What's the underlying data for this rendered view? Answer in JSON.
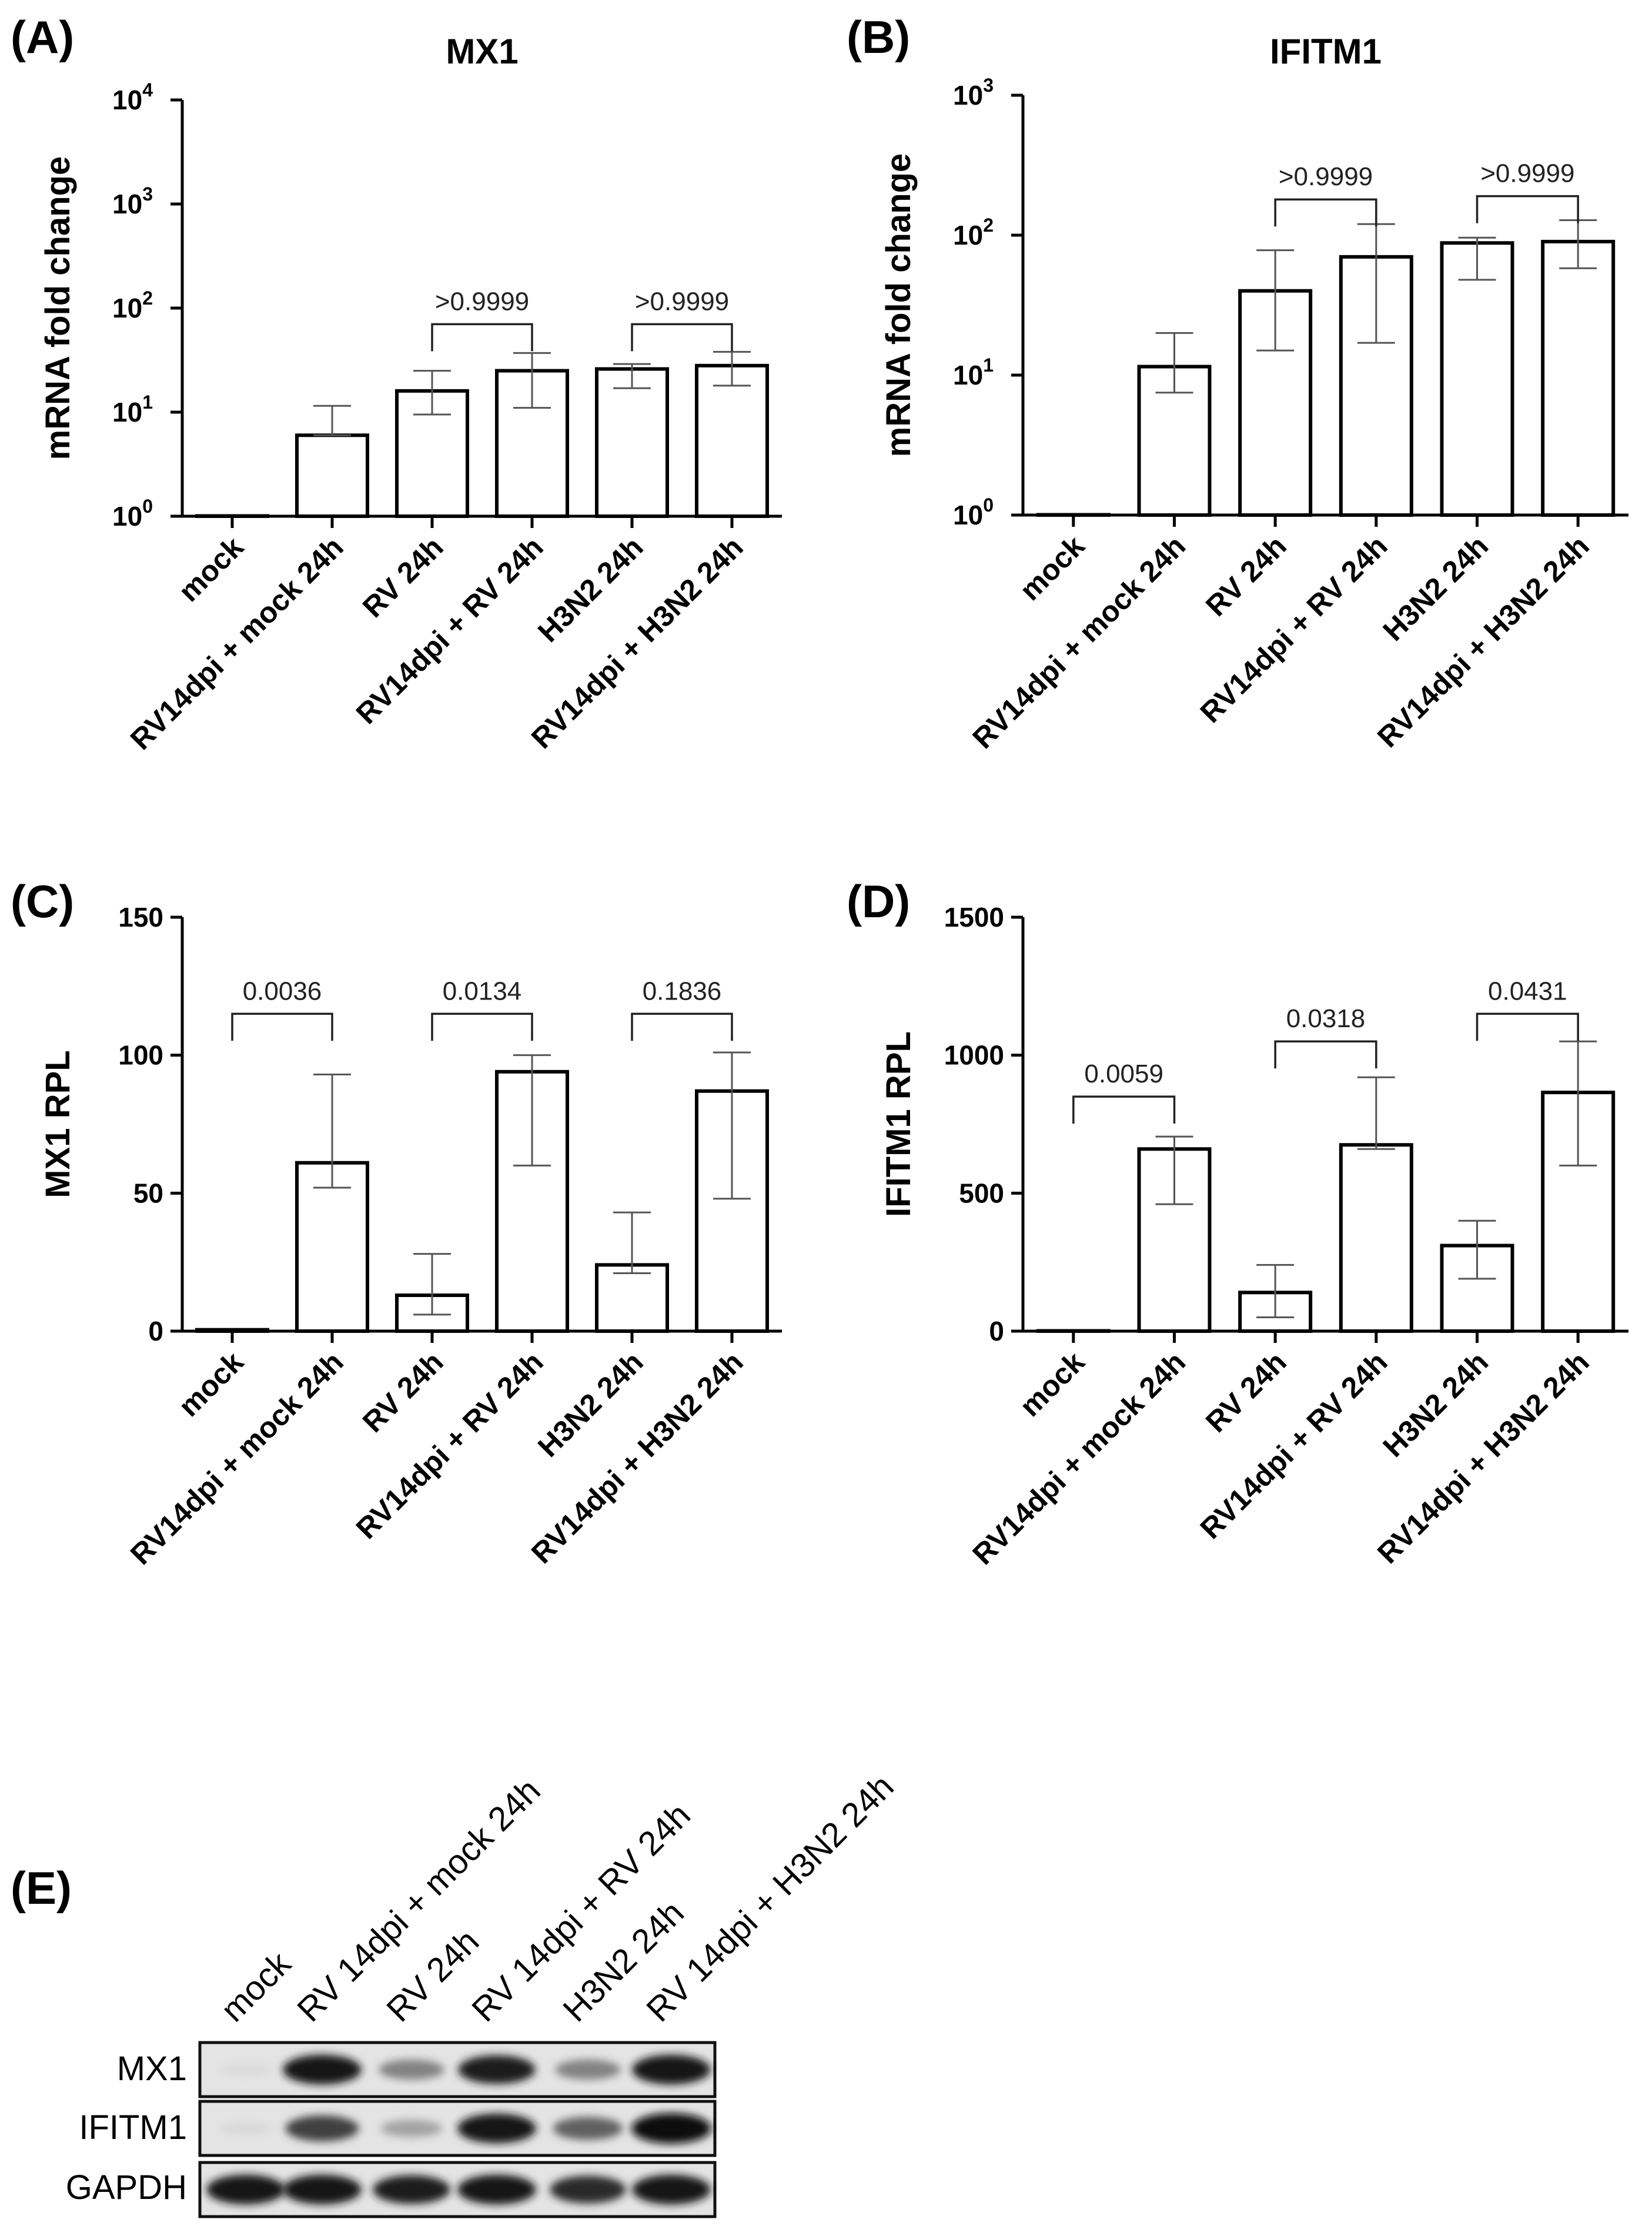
{
  "chart_data": [
    {
      "id": "A",
      "panel_label": "(A)",
      "type": "bar",
      "title": "MX1",
      "ylabel": "mRNA fold change",
      "yscale": "log",
      "ylim": [
        1,
        10000
      ],
      "yticks": [
        1,
        10,
        100,
        1000,
        10000
      ],
      "ytick_labels": [
        [
          "10",
          "0"
        ],
        [
          "10",
          "1"
        ],
        [
          "10",
          "2"
        ],
        [
          "10",
          "3"
        ],
        [
          "10",
          "4"
        ]
      ],
      "categories": [
        "mock",
        "RV14dpi + mock 24h",
        "RV 24h",
        "RV14dpi + RV 24h",
        "H3N2 24h",
        "RV14dpi + H3N2 24h"
      ],
      "values": [
        1,
        6,
        16,
        25,
        26,
        28
      ],
      "error_low": [
        1,
        6,
        9.5,
        11,
        17,
        18
      ],
      "error_high": [
        1,
        11.5,
        25,
        37,
        29,
        38
      ],
      "comparisons": [
        {
          "from": 2,
          "to": 3,
          "label": ">0.9999",
          "y": 70
        },
        {
          "from": 4,
          "to": 5,
          "label": ">0.9999",
          "y": 70
        }
      ]
    },
    {
      "id": "B",
      "panel_label": "(B)",
      "type": "bar",
      "title": "IFITM1",
      "ylabel": "mRNA fold change",
      "yscale": "log",
      "ylim": [
        1,
        1000
      ],
      "yticks": [
        1,
        10,
        100,
        1000
      ],
      "ytick_labels": [
        [
          "10",
          "0"
        ],
        [
          "10",
          "1"
        ],
        [
          "10",
          "2"
        ],
        [
          "10",
          "3"
        ]
      ],
      "categories": [
        "mock",
        "RV14dpi + mock 24h",
        "RV 24h",
        "RV14dpi + RV 24h",
        "H3N2 24h",
        "RV14dpi + H3N2 24h"
      ],
      "values": [
        1,
        11.5,
        40,
        70,
        88,
        90
      ],
      "error_low": [
        1,
        7.5,
        15,
        17,
        48,
        58
      ],
      "error_high": [
        1,
        20,
        78,
        120,
        96,
        128
      ],
      "comparisons": [
        {
          "from": 2,
          "to": 3,
          "label": ">0.9999",
          "y": 180
        },
        {
          "from": 4,
          "to": 5,
          "label": ">0.9999",
          "y": 190
        }
      ]
    },
    {
      "id": "C",
      "panel_label": "(C)",
      "type": "bar",
      "title": "",
      "ylabel": "MX1 RPL",
      "yscale": "linear",
      "ylim": [
        0,
        150
      ],
      "yticks": [
        0,
        50,
        100,
        150
      ],
      "ytick_labels": [
        "0",
        "50",
        "100",
        "150"
      ],
      "categories": [
        "mock",
        "RV14dpi + mock 24h",
        "RV 24h",
        "RV14dpi + RV 24h",
        "H3N2 24h",
        "RV14dpi + H3N2 24h"
      ],
      "values": [
        0.5,
        61,
        13,
        94,
        24,
        87
      ],
      "error_low": [
        0.5,
        52,
        6,
        60,
        21,
        48
      ],
      "error_high": [
        0.5,
        93,
        28,
        100,
        43,
        101
      ],
      "comparisons": [
        {
          "from": 0,
          "to": 1,
          "label": "0.0036",
          "y": 115
        },
        {
          "from": 2,
          "to": 3,
          "label": "0.0134",
          "y": 115
        },
        {
          "from": 4,
          "to": 5,
          "label": "0.1836",
          "y": 115
        }
      ]
    },
    {
      "id": "D",
      "panel_label": "(D)",
      "type": "bar",
      "title": "",
      "ylabel": "IFITM1 RPL",
      "yscale": "linear",
      "ylim": [
        0,
        1500
      ],
      "yticks": [
        0,
        500,
        1000,
        1500
      ],
      "ytick_labels": [
        "0",
        "500",
        "1000",
        "1500"
      ],
      "categories": [
        "mock",
        "RV14dpi + mock 24h",
        "RV 24h",
        "RV14dpi + RV 24h",
        "H3N2 24h",
        "RV14dpi + H3N2 24h"
      ],
      "values": [
        0,
        660,
        140,
        675,
        310,
        865
      ],
      "error_low": [
        0,
        460,
        50,
        660,
        190,
        600
      ],
      "error_high": [
        0,
        705,
        240,
        920,
        400,
        1050
      ],
      "comparisons": [
        {
          "from": 0,
          "to": 1,
          "label": "0.0059",
          "y": 850
        },
        {
          "from": 2,
          "to": 3,
          "label": "0.0318",
          "y": 1050
        },
        {
          "from": 4,
          "to": 5,
          "label": "0.0431",
          "y": 1150
        }
      ]
    }
  ],
  "blot": {
    "panel_label": "(E)",
    "lanes": [
      "mock",
      "RV 14dpi + mock 24h",
      "RV 24h",
      "RV 14dpi + RV 24h",
      "H3N2 24h",
      "RV 14dpi + H3N2 24h"
    ],
    "rows": [
      {
        "name": "MX1",
        "intensity": [
          0.05,
          0.95,
          0.45,
          0.9,
          0.45,
          0.95
        ]
      },
      {
        "name": "IFITM1",
        "intensity": [
          0.06,
          0.75,
          0.3,
          0.95,
          0.6,
          1.0
        ]
      },
      {
        "name": "GAPDH",
        "intensity": [
          0.95,
          0.95,
          0.9,
          0.95,
          0.85,
          0.95
        ]
      }
    ]
  }
}
